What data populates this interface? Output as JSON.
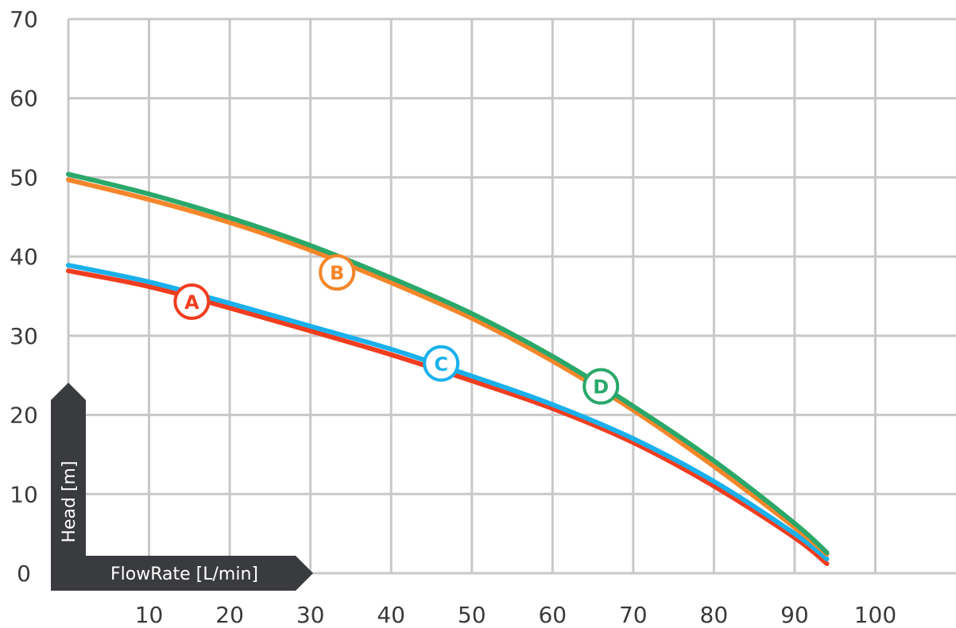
{
  "chart_data": {
    "type": "line",
    "title": "",
    "xlabel": "FlowRate [L/min]",
    "ylabel": "Head [m]",
    "xlim": [
      0,
      110
    ],
    "ylim": [
      0,
      70
    ],
    "x_ticks": [
      10,
      20,
      30,
      40,
      50,
      60,
      70,
      80,
      90,
      100
    ],
    "y_ticks": [
      0,
      10,
      20,
      30,
      40,
      50,
      60,
      70
    ],
    "grid": true,
    "colors": {
      "grid": "#c8c8c8",
      "axis_label_bg": "#3a3b3e",
      "A": "#f03d1f",
      "B": "#f5862a",
      "C": "#1ab0ec",
      "D": "#2aa86a"
    },
    "series": [
      {
        "name": "A",
        "color": "#f03d1f",
        "x": [
          0,
          10,
          20,
          30,
          40,
          50,
          60,
          70,
          80,
          90,
          94
        ],
        "y": [
          38.2,
          36.2,
          33.5,
          30.6,
          27.6,
          24.3,
          20.8,
          16.5,
          11.0,
          4.5,
          1.2
        ],
        "label_at": [
          15.3,
          34.3
        ]
      },
      {
        "name": "B",
        "color": "#f5862a",
        "x": [
          0,
          10,
          20,
          30,
          40,
          50,
          60,
          70,
          80,
          90,
          94
        ],
        "y": [
          49.7,
          47.2,
          44.3,
          40.8,
          36.7,
          32.2,
          26.8,
          20.6,
          13.5,
          5.8,
          2.4
        ],
        "label_at": [
          33.3,
          38.0
        ]
      },
      {
        "name": "C",
        "color": "#1ab0ec",
        "x": [
          0,
          10,
          20,
          30,
          40,
          50,
          60,
          70,
          80,
          90,
          94
        ],
        "y": [
          38.9,
          36.8,
          34.1,
          31.2,
          28.3,
          24.9,
          21.3,
          17.0,
          11.6,
          5.0,
          1.8
        ],
        "label_at": [
          46.2,
          26.5
        ]
      },
      {
        "name": "D",
        "color": "#2aa86a",
        "x": [
          0,
          10,
          20,
          30,
          40,
          50,
          60,
          70,
          80,
          90,
          94
        ],
        "y": [
          50.4,
          47.9,
          44.9,
          41.4,
          37.3,
          32.8,
          27.4,
          21.1,
          14.2,
          6.3,
          2.6
        ],
        "label_at": [
          66.0,
          23.6
        ]
      }
    ]
  }
}
